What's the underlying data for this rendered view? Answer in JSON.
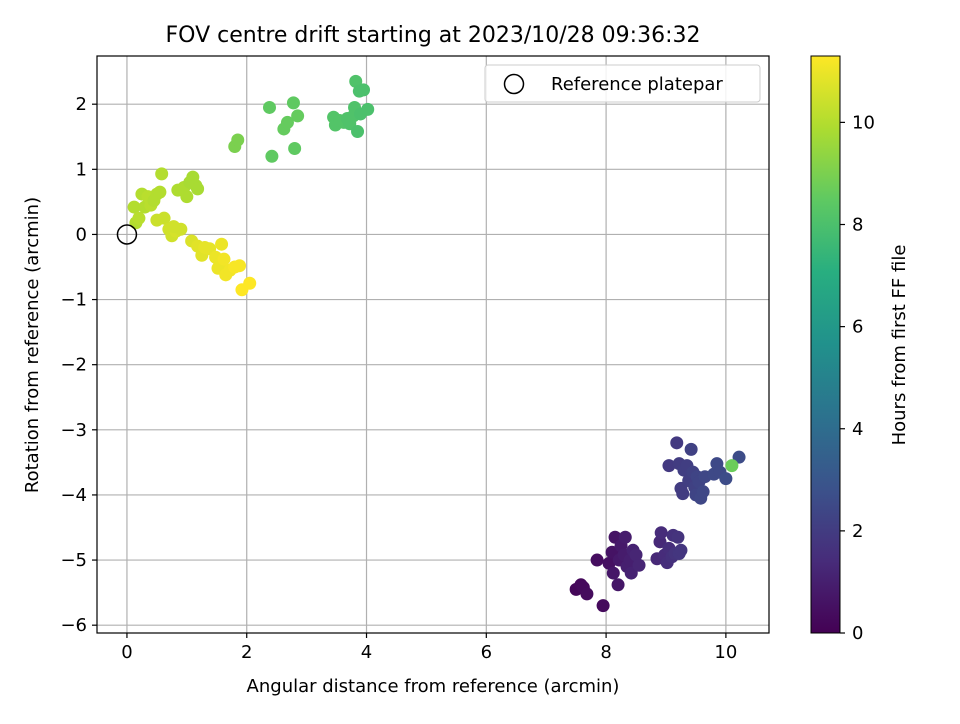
{
  "chart_data": {
    "type": "scatter",
    "title": "FOV centre drift starting at 2023/10/28 09:36:32",
    "xlabel": "Angular distance from reference (arcmin)",
    "ylabel": "Rotation from reference (arcmin)",
    "xlim": [
      -0.5,
      10.72
    ],
    "ylim": [
      -6.12,
      2.74
    ],
    "xticks": [
      0,
      2,
      4,
      6,
      8,
      10
    ],
    "yticks": [
      -6,
      -5,
      -4,
      -3,
      -2,
      -1,
      0,
      1,
      2
    ],
    "grid": true,
    "legend": {
      "location": "top-right",
      "entries": [
        "Reference platepar"
      ]
    },
    "reference_point": {
      "x": 0,
      "y": 0,
      "label": "Reference platepar"
    },
    "colorbar": {
      "label": "Hours from first FF file",
      "colormap": "viridis",
      "range": [
        0,
        11.3
      ],
      "ticks": [
        0,
        2,
        4,
        6,
        8,
        10
      ]
    },
    "points": [
      {
        "x": 7.5,
        "y": -5.45,
        "c": 0.2
      },
      {
        "x": 7.58,
        "y": -5.38,
        "c": 0.25
      },
      {
        "x": 7.62,
        "y": -5.42,
        "c": 0.3
      },
      {
        "x": 7.68,
        "y": -5.52,
        "c": 0.35
      },
      {
        "x": 7.85,
        "y": -5.0,
        "c": 0.4
      },
      {
        "x": 7.95,
        "y": -5.7,
        "c": 0.3
      },
      {
        "x": 8.05,
        "y": -5.05,
        "c": 0.5
      },
      {
        "x": 8.1,
        "y": -4.88,
        "c": 0.6
      },
      {
        "x": 8.15,
        "y": -4.65,
        "c": 0.6
      },
      {
        "x": 8.12,
        "y": -5.2,
        "c": 0.7
      },
      {
        "x": 8.2,
        "y": -5.38,
        "c": 0.7
      },
      {
        "x": 8.22,
        "y": -5.0,
        "c": 0.8
      },
      {
        "x": 8.25,
        "y": -4.78,
        "c": 0.8
      },
      {
        "x": 8.3,
        "y": -4.92,
        "c": 0.9
      },
      {
        "x": 8.32,
        "y": -4.65,
        "c": 0.9
      },
      {
        "x": 8.35,
        "y": -5.1,
        "c": 1.0
      },
      {
        "x": 8.4,
        "y": -5.0,
        "c": 1.0
      },
      {
        "x": 8.42,
        "y": -5.2,
        "c": 1.1
      },
      {
        "x": 8.45,
        "y": -4.85,
        "c": 1.1
      },
      {
        "x": 8.5,
        "y": -4.92,
        "c": 1.2
      },
      {
        "x": 8.55,
        "y": -5.08,
        "c": 1.2
      },
      {
        "x": 8.85,
        "y": -4.98,
        "c": 1.3
      },
      {
        "x": 8.9,
        "y": -4.72,
        "c": 1.3
      },
      {
        "x": 8.92,
        "y": -4.58,
        "c": 1.4
      },
      {
        "x": 8.98,
        "y": -4.92,
        "c": 1.4
      },
      {
        "x": 9.02,
        "y": -5.04,
        "c": 1.5
      },
      {
        "x": 9.05,
        "y": -4.82,
        "c": 1.5
      },
      {
        "x": 9.1,
        "y": -4.95,
        "c": 1.6
      },
      {
        "x": 9.12,
        "y": -4.62,
        "c": 1.6
      },
      {
        "x": 9.15,
        "y": -4.9,
        "c": 1.7
      },
      {
        "x": 9.2,
        "y": -4.65,
        "c": 1.7
      },
      {
        "x": 9.22,
        "y": -4.9,
        "c": 1.8
      },
      {
        "x": 9.25,
        "y": -4.85,
        "c": 1.8
      },
      {
        "x": 9.05,
        "y": -3.55,
        "c": 1.9
      },
      {
        "x": 9.18,
        "y": -3.2,
        "c": 1.9
      },
      {
        "x": 9.22,
        "y": -3.52,
        "c": 2.0
      },
      {
        "x": 9.25,
        "y": -3.9,
        "c": 2.0
      },
      {
        "x": 9.28,
        "y": -3.98,
        "c": 2.0
      },
      {
        "x": 9.3,
        "y": -3.62,
        "c": 2.1
      },
      {
        "x": 9.35,
        "y": -3.55,
        "c": 2.1
      },
      {
        "x": 9.38,
        "y": -3.78,
        "c": 2.1
      },
      {
        "x": 9.42,
        "y": -3.3,
        "c": 2.2
      },
      {
        "x": 9.45,
        "y": -3.65,
        "c": 2.2
      },
      {
        "x": 9.48,
        "y": -3.88,
        "c": 2.2
      },
      {
        "x": 9.5,
        "y": -4.0,
        "c": 2.3
      },
      {
        "x": 9.52,
        "y": -3.72,
        "c": 2.3
      },
      {
        "x": 9.55,
        "y": -3.8,
        "c": 2.3
      },
      {
        "x": 9.58,
        "y": -4.05,
        "c": 2.4
      },
      {
        "x": 9.62,
        "y": -3.95,
        "c": 2.4
      },
      {
        "x": 9.65,
        "y": -3.72,
        "c": 2.4
      },
      {
        "x": 9.8,
        "y": -3.68,
        "c": 2.5
      },
      {
        "x": 9.85,
        "y": -3.52,
        "c": 2.5
      },
      {
        "x": 9.9,
        "y": -3.65,
        "c": 2.5
      },
      {
        "x": 10.0,
        "y": -3.75,
        "c": 2.6
      },
      {
        "x": 10.22,
        "y": -3.42,
        "c": 2.6
      },
      {
        "x": 10.1,
        "y": -3.55,
        "c": 8.7
      },
      {
        "x": 2.38,
        "y": 1.95,
        "c": 8.5
      },
      {
        "x": 2.42,
        "y": 1.2,
        "c": 8.5
      },
      {
        "x": 2.62,
        "y": 1.62,
        "c": 8.6
      },
      {
        "x": 2.68,
        "y": 1.72,
        "c": 8.6
      },
      {
        "x": 2.78,
        "y": 2.02,
        "c": 8.5
      },
      {
        "x": 2.8,
        "y": 1.32,
        "c": 8.5
      },
      {
        "x": 2.85,
        "y": 1.82,
        "c": 8.6
      },
      {
        "x": 3.45,
        "y": 1.8,
        "c": 8.2
      },
      {
        "x": 3.48,
        "y": 1.68,
        "c": 8.2
      },
      {
        "x": 3.55,
        "y": 1.75,
        "c": 8.2
      },
      {
        "x": 3.62,
        "y": 1.72,
        "c": 8.2
      },
      {
        "x": 3.68,
        "y": 1.78,
        "c": 8.1
      },
      {
        "x": 3.72,
        "y": 1.7,
        "c": 8.1
      },
      {
        "x": 3.78,
        "y": 1.82,
        "c": 8.1
      },
      {
        "x": 3.8,
        "y": 1.95,
        "c": 8.1
      },
      {
        "x": 3.82,
        "y": 2.35,
        "c": 8.1
      },
      {
        "x": 3.85,
        "y": 1.58,
        "c": 8.0
      },
      {
        "x": 3.88,
        "y": 2.2,
        "c": 8.0
      },
      {
        "x": 3.9,
        "y": 1.85,
        "c": 8.0
      },
      {
        "x": 3.95,
        "y": 2.22,
        "c": 8.0
      },
      {
        "x": 4.02,
        "y": 1.92,
        "c": 8.0
      },
      {
        "x": 1.8,
        "y": 1.35,
        "c": 9.0
      },
      {
        "x": 1.85,
        "y": 1.45,
        "c": 9.0
      },
      {
        "x": 0.12,
        "y": 0.42,
        "c": 10.0
      },
      {
        "x": 0.15,
        "y": 0.18,
        "c": 10.0
      },
      {
        "x": 0.2,
        "y": 0.25,
        "c": 10.1
      },
      {
        "x": 0.25,
        "y": 0.62,
        "c": 10.0
      },
      {
        "x": 0.3,
        "y": 0.42,
        "c": 10.0
      },
      {
        "x": 0.35,
        "y": 0.58,
        "c": 10.1
      },
      {
        "x": 0.4,
        "y": 0.45,
        "c": 10.1
      },
      {
        "x": 0.45,
        "y": 0.52,
        "c": 10.0
      },
      {
        "x": 0.5,
        "y": 0.62,
        "c": 10.0
      },
      {
        "x": 0.55,
        "y": 0.65,
        "c": 10.0
      },
      {
        "x": 0.58,
        "y": 0.93,
        "c": 10.0
      },
      {
        "x": 0.85,
        "y": 0.68,
        "c": 9.9
      },
      {
        "x": 0.95,
        "y": 0.72,
        "c": 9.9
      },
      {
        "x": 1.0,
        "y": 0.58,
        "c": 9.9
      },
      {
        "x": 1.05,
        "y": 0.8,
        "c": 9.8
      },
      {
        "x": 1.1,
        "y": 0.88,
        "c": 9.8
      },
      {
        "x": 1.15,
        "y": 0.75,
        "c": 9.8
      },
      {
        "x": 1.18,
        "y": 0.7,
        "c": 9.8
      },
      {
        "x": 0.5,
        "y": 0.22,
        "c": 10.4
      },
      {
        "x": 0.62,
        "y": 0.25,
        "c": 10.4
      },
      {
        "x": 0.7,
        "y": 0.08,
        "c": 10.5
      },
      {
        "x": 0.75,
        "y": -0.02,
        "c": 10.5
      },
      {
        "x": 0.82,
        "y": 0.05,
        "c": 10.6
      },
      {
        "x": 0.9,
        "y": 0.08,
        "c": 10.5
      },
      {
        "x": 0.78,
        "y": 0.12,
        "c": 10.5
      },
      {
        "x": 1.08,
        "y": -0.1,
        "c": 10.7
      },
      {
        "x": 1.18,
        "y": -0.18,
        "c": 10.8
      },
      {
        "x": 1.25,
        "y": -0.32,
        "c": 10.8
      },
      {
        "x": 1.3,
        "y": -0.2,
        "c": 10.9
      },
      {
        "x": 1.38,
        "y": -0.22,
        "c": 10.9
      },
      {
        "x": 1.48,
        "y": -0.35,
        "c": 11.0
      },
      {
        "x": 1.52,
        "y": -0.52,
        "c": 11.0
      },
      {
        "x": 1.55,
        "y": -0.45,
        "c": 11.0
      },
      {
        "x": 1.58,
        "y": -0.15,
        "c": 11.0
      },
      {
        "x": 1.62,
        "y": -0.38,
        "c": 11.1
      },
      {
        "x": 1.65,
        "y": -0.62,
        "c": 11.1
      },
      {
        "x": 1.72,
        "y": -0.55,
        "c": 11.1
      },
      {
        "x": 1.8,
        "y": -0.5,
        "c": 11.2
      },
      {
        "x": 1.88,
        "y": -0.48,
        "c": 11.2
      },
      {
        "x": 1.92,
        "y": -0.85,
        "c": 11.3
      },
      {
        "x": 2.05,
        "y": -0.75,
        "c": 11.3
      }
    ]
  }
}
